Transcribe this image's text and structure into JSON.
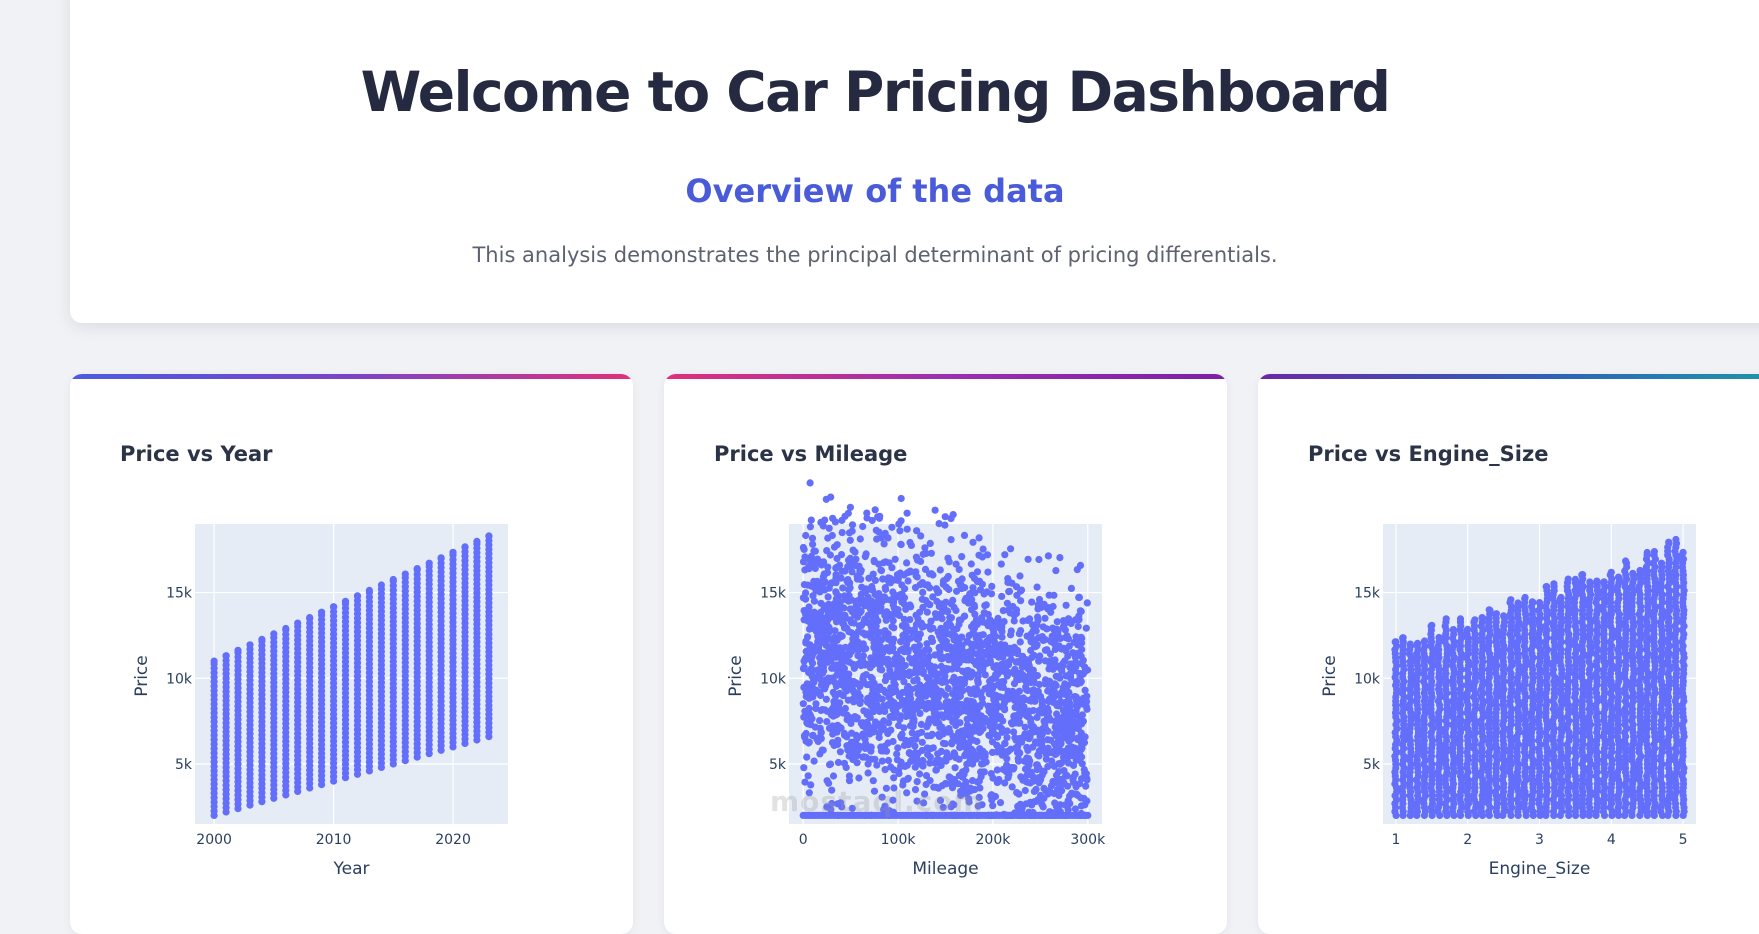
{
  "hero": {
    "title": "Welcome to Car Pricing Dashboard",
    "subtitle": "Overview of the data",
    "description": "This analysis demonstrates the principal determinant of pricing differentials."
  },
  "colors": {
    "marker": "#636efa",
    "plot_bg": "#e5ecf6",
    "accent": "#4a5bd9"
  },
  "watermark": "mostaql.com",
  "chart_data": [
    {
      "type": "scatter",
      "title": "Price vs Year",
      "xlabel": "Year",
      "ylabel": "Price",
      "xlim": [
        1998.4,
        2024.6
      ],
      "ylim": [
        1500,
        19000
      ],
      "xticks": [
        2000,
        2010,
        2020
      ],
      "xtick_labels": [
        "2000",
        "2010",
        "2020"
      ],
      "yticks": [
        5000,
        10000,
        15000
      ],
      "ytick_labels": [
        "5k",
        "10k",
        "15k"
      ],
      "grid": true,
      "legend": "none",
      "mode": "year_columns",
      "x_min": 2000,
      "x_max": 2023,
      "price_floor": 2000,
      "column_max_start": 11000,
      "column_max_end": 18300,
      "column_min_start": 2000,
      "column_min_end": 6600
    },
    {
      "type": "scatter",
      "title": "Price vs Mileage",
      "xlabel": "Mileage",
      "ylabel": "Price",
      "xlim": [
        -15000,
        315000
      ],
      "ylim": [
        1500,
        19000
      ],
      "xticks": [
        0,
        100000,
        200000,
        300000
      ],
      "xtick_labels": [
        "0",
        "100k",
        "200k",
        "300k"
      ],
      "yticks": [
        5000,
        10000,
        15000
      ],
      "ytick_labels": [
        "5k",
        "10k",
        "15k"
      ],
      "grid": true,
      "legend": "none",
      "mode": "cloud",
      "x_min": 0,
      "x_max": 300000,
      "price_floor": 2000,
      "upper_start": 18300,
      "upper_end": 13500,
      "lower_start": 5200,
      "lower_end": 2000
    },
    {
      "type": "scatter",
      "title": "Price vs Engine_Size",
      "xlabel": "Engine_Size",
      "ylabel": "Price",
      "xlim": [
        0.82,
        5.18
      ],
      "ylim": [
        1500,
        19000
      ],
      "xticks": [
        1,
        2,
        3,
        4,
        5
      ],
      "xtick_labels": [
        "1",
        "2",
        "3",
        "4",
        "5"
      ],
      "yticks": [
        5000,
        10000,
        15000
      ],
      "ytick_labels": [
        "5k",
        "10k",
        "15k"
      ],
      "grid": true,
      "legend": "none",
      "mode": "engine_columns",
      "x_min": 1.0,
      "x_max": 5.0,
      "x_step": 0.1,
      "price_floor": 2000,
      "upper_start": 12500,
      "upper_end": 18300,
      "lower_start": 2000,
      "lower_end": 3500
    }
  ]
}
